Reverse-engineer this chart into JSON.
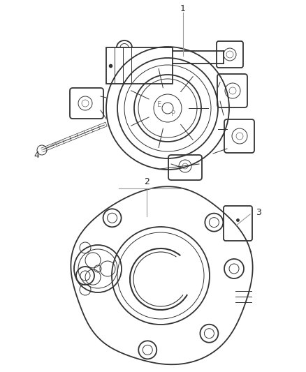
{
  "bg_color": "#ffffff",
  "line_color": "#333333",
  "line_color_light": "#666666",
  "lw_main": 1.3,
  "lw_thin": 0.7,
  "lw_hair": 0.4,
  "label_color": "#222222",
  "label_fontsize": 9
}
